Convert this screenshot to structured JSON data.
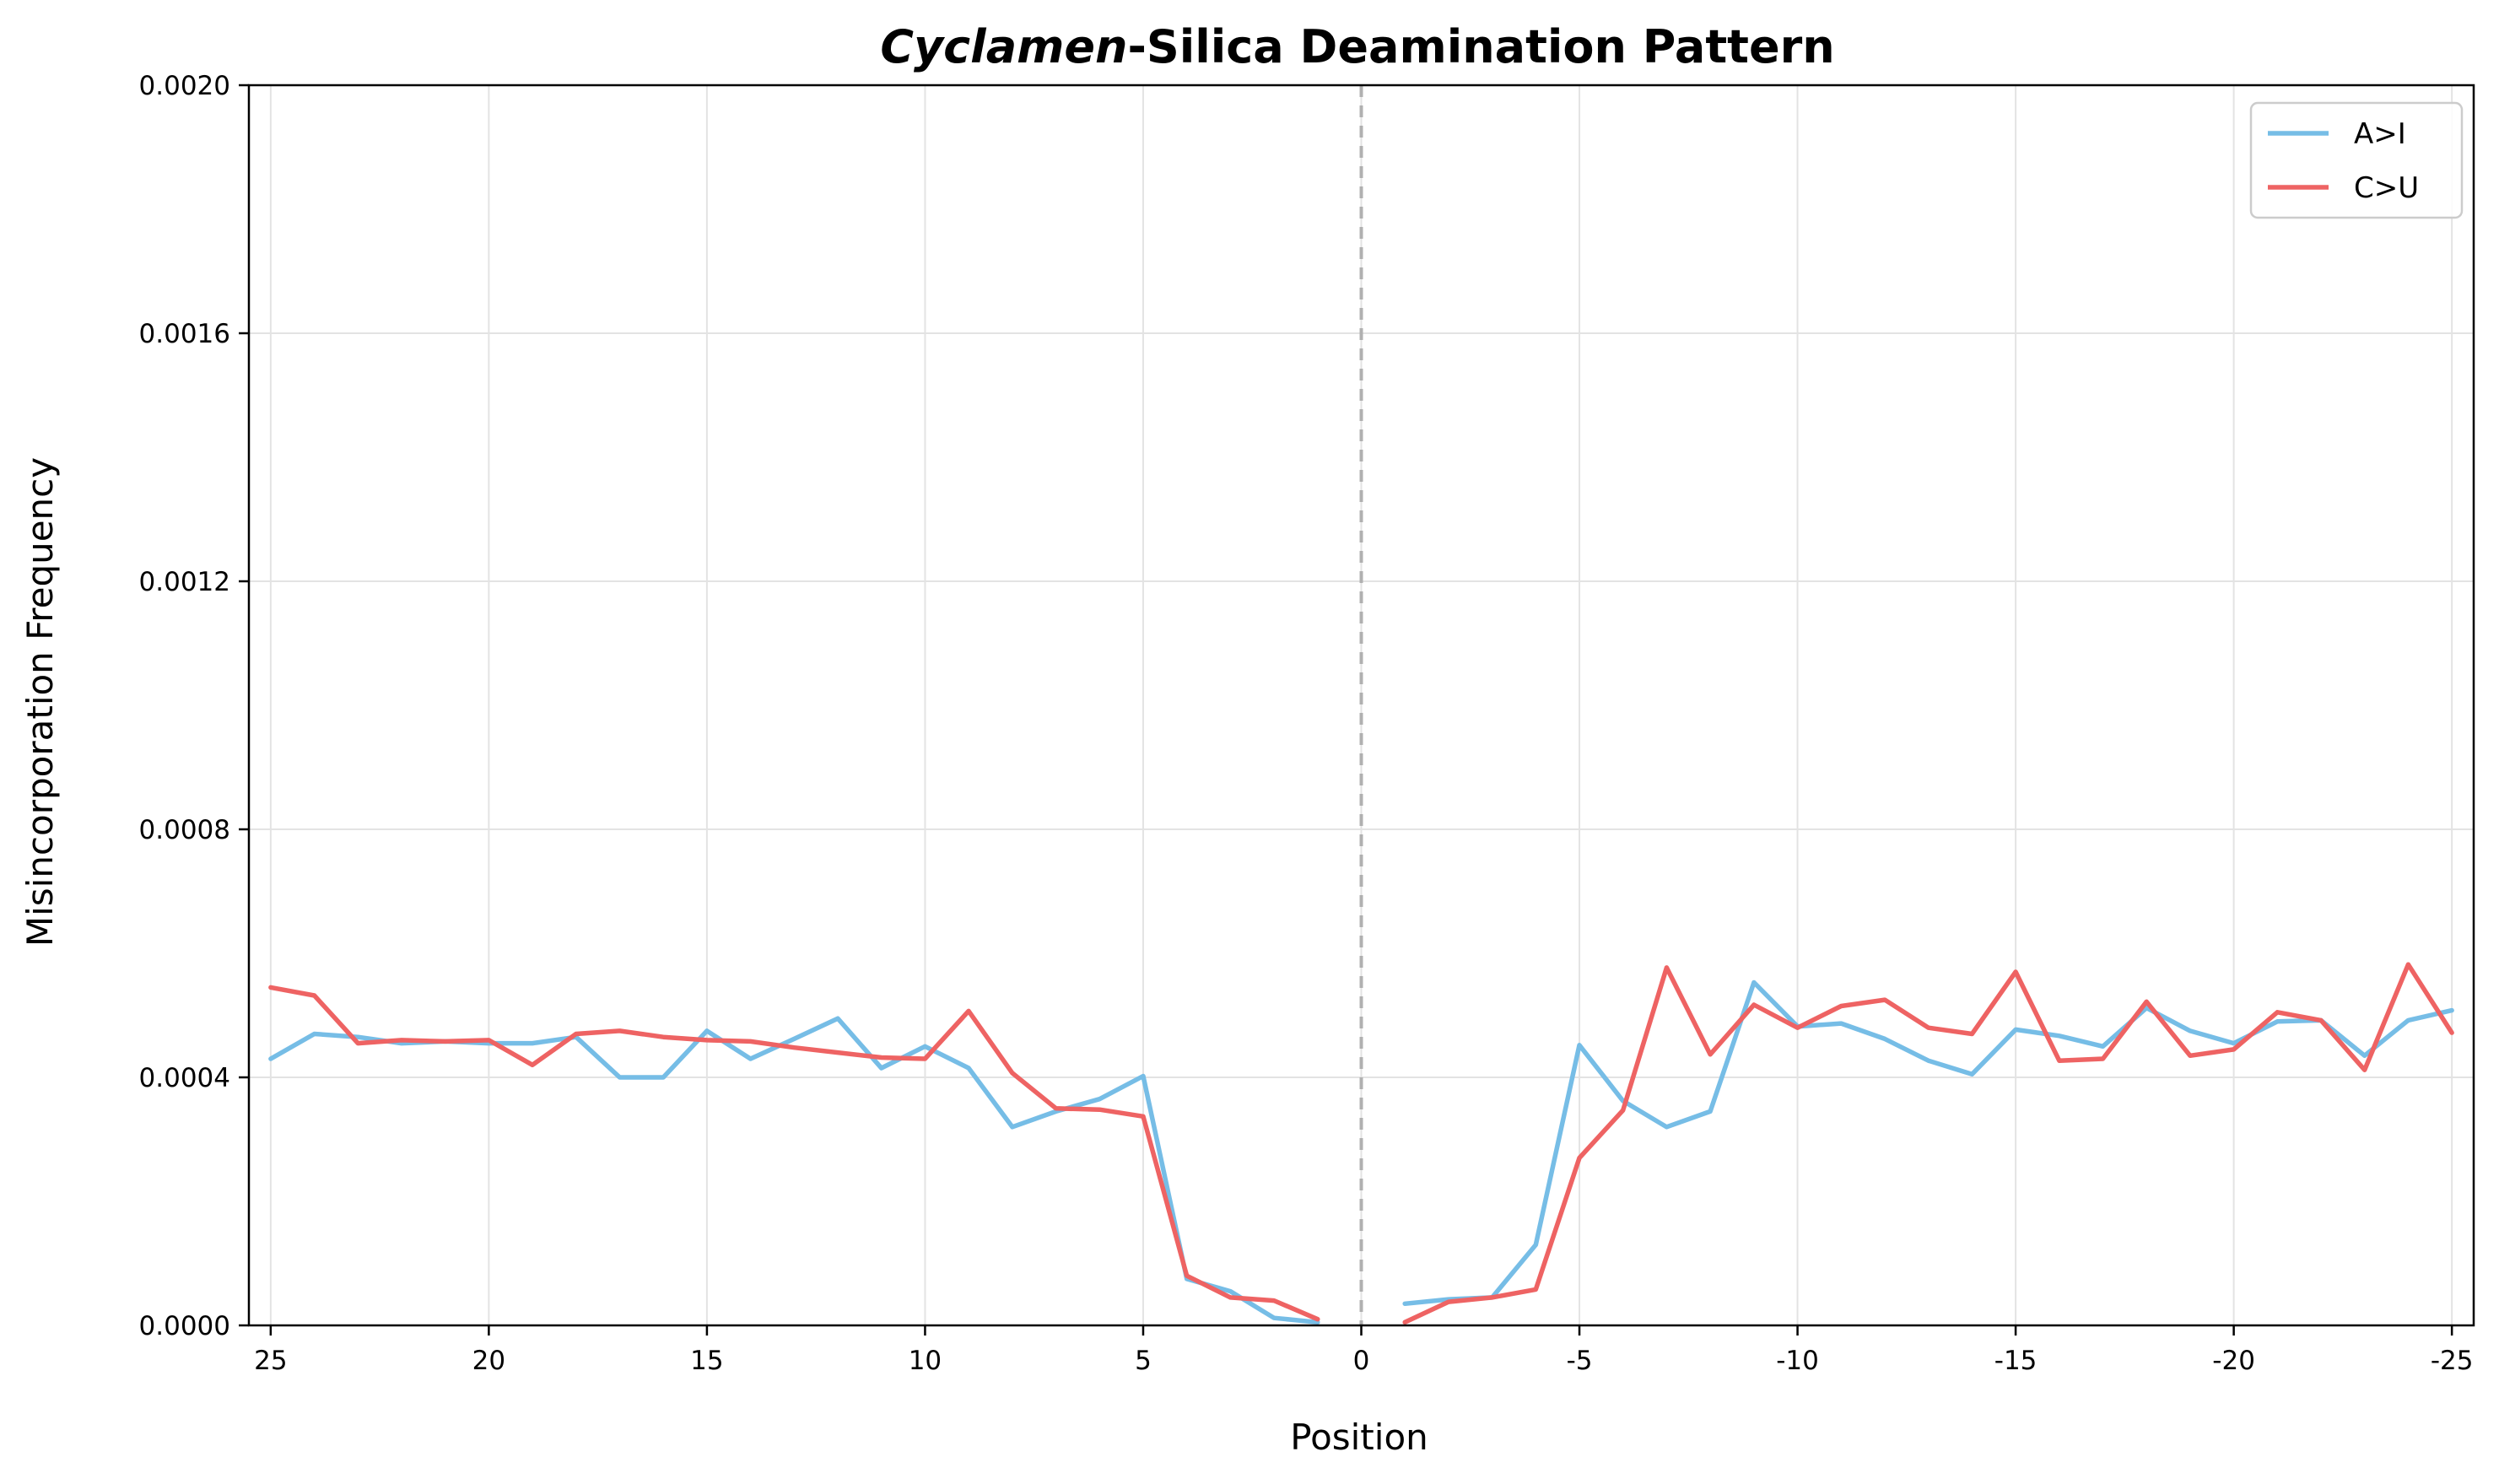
{
  "chart_data": {
    "type": "line",
    "title_italic": "Cyclamen",
    "title_rest": "-Silica Deamination Pattern",
    "xlabel": "Position",
    "ylabel": "Misincorporation Frequency",
    "xlim": [
      25.5,
      -25.5
    ],
    "ylim": [
      0,
      0.002
    ],
    "yticks": [
      0,
      0.0004,
      0.0008,
      0.0012,
      0.0016,
      0.002
    ],
    "ytick_labels": [
      "0.0000",
      "0.0004",
      "0.0008",
      "0.0012",
      "0.0016",
      "0.0020"
    ],
    "xticks": [
      25,
      20,
      15,
      10,
      5,
      0,
      -5,
      -10,
      -15,
      -20,
      -25
    ],
    "xtick_labels": [
      "25",
      "20",
      "15",
      "10",
      "5",
      "0",
      "-5",
      "-10",
      "-15",
      "-20",
      "-25"
    ],
    "grid": true,
    "divider_at": 0,
    "legend_position": "top-right",
    "series": [
      {
        "name": "A>I",
        "color": "#76bde6",
        "segments": [
          {
            "x": [
              25,
              24,
              23,
              22,
              21,
              20,
              19,
              18,
              17,
              16,
              15,
              14,
              13,
              12,
              11,
              10,
              9,
              8,
              7,
              6,
              5,
              4,
              3,
              2,
              1
            ],
            "y": [
              0.00043,
              0.00047,
              0.000465,
              0.000455,
              0.000458,
              0.000455,
              0.000455,
              0.000465,
              0.0004,
              0.0004,
              0.000475,
              0.00043,
              0.000462,
              0.000495,
              0.000415,
              0.00045,
              0.000415,
              0.00032,
              0.000345,
              0.000365,
              0.000402,
              7.5e-05,
              5.5e-05,
              1.2e-05,
              5e-06
            ]
          },
          {
            "x": [
              -1,
              -2,
              -3,
              -4,
              -5,
              -6,
              -7,
              -8,
              -9,
              -10,
              -11,
              -12,
              -13,
              -14,
              -15,
              -16,
              -17,
              -18,
              -19,
              -20,
              -21,
              -22,
              -23,
              -24,
              -25
            ],
            "y": [
              3.5e-05,
              4.2e-05,
              4.5e-05,
              0.00013,
              0.000452,
              0.000362,
              0.00032,
              0.000345,
              0.000553,
              0.000482,
              0.000487,
              0.000462,
              0.000427,
              0.000405,
              0.000477,
              0.000467,
              0.00045,
              0.000512,
              0.000475,
              0.000455,
              0.00049,
              0.000492,
              0.000435,
              0.000492,
              0.000508
            ]
          }
        ]
      },
      {
        "name": "C>U",
        "color": "#ee6363",
        "segments": [
          {
            "x": [
              25,
              24,
              23,
              22,
              21,
              20,
              19,
              18,
              17,
              16,
              15,
              14,
              13,
              12,
              11,
              10,
              9,
              8,
              7,
              6,
              5,
              4,
              3,
              2,
              1
            ],
            "y": [
              0.000545,
              0.000532,
              0.000455,
              0.00046,
              0.000458,
              0.00046,
              0.00042,
              0.00047,
              0.000475,
              0.000465,
              0.00046,
              0.000458,
              0.000448,
              0.00044,
              0.000432,
              0.00043,
              0.000507,
              0.000407,
              0.00035,
              0.000348,
              0.000337,
              8e-05,
              4.5e-05,
              4e-05,
              1e-05
            ]
          },
          {
            "x": [
              -1,
              -2,
              -3,
              -4,
              -5,
              -6,
              -7,
              -8,
              -9,
              -10,
              -11,
              -12,
              -13,
              -14,
              -15,
              -16,
              -17,
              -18,
              -19,
              -20,
              -21,
              -22,
              -23,
              -24,
              -25
            ],
            "y": [
              5e-06,
              3.8e-05,
              4.5e-05,
              5.8e-05,
              0.00027,
              0.000347,
              0.000577,
              0.000437,
              0.000517,
              0.00048,
              0.000515,
              0.000525,
              0.00048,
              0.00047,
              0.00057,
              0.000427,
              0.00043,
              0.000522,
              0.000435,
              0.000445,
              0.000505,
              0.000492,
              0.000412,
              0.000582,
              0.000472
            ]
          }
        ]
      }
    ]
  }
}
